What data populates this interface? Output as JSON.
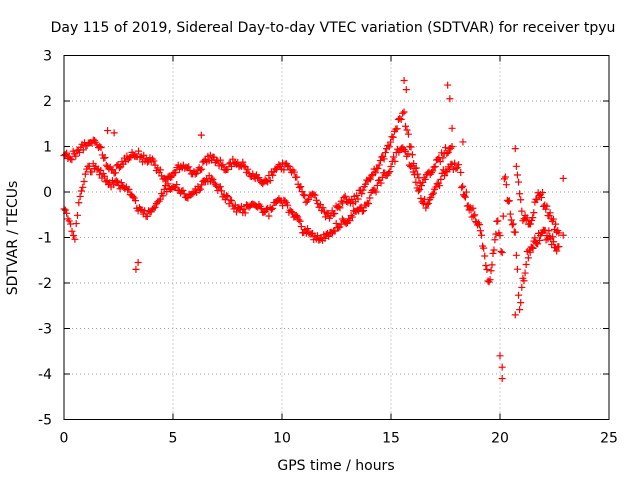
{
  "chart_data": {
    "type": "scatter",
    "title": "Day 115 of 2019, Sidereal Day-to-day VTEC variation (SDTVAR) for receiver tpyu",
    "xlabel": "GPS time / hours",
    "ylabel": "SDTVAR / TECUs",
    "xlim": [
      0,
      25
    ],
    "ylim": [
      -5,
      3
    ],
    "xticks": [
      "0",
      "5",
      "10",
      "15",
      "20",
      "25"
    ],
    "yticks": [
      "3",
      "2",
      "1",
      "0",
      "-1",
      "-2",
      "-3",
      "-4",
      "-5"
    ],
    "grid": true,
    "marker": "+",
    "series": [
      {
        "name": "SDTVAR",
        "color": "#ff0000",
        "trace_upper": [
          [
            0.0,
            0.8
          ],
          [
            0.3,
            0.75
          ],
          [
            0.6,
            0.9
          ],
          [
            1.0,
            1.05
          ],
          [
            1.4,
            1.1
          ],
          [
            1.7,
            0.95
          ],
          [
            2.0,
            0.6
          ],
          [
            2.3,
            0.45
          ],
          [
            2.6,
            0.6
          ],
          [
            3.0,
            0.8
          ],
          [
            3.3,
            0.85
          ],
          [
            3.6,
            0.75
          ],
          [
            4.0,
            0.7
          ],
          [
            4.3,
            0.5
          ],
          [
            4.6,
            0.3
          ],
          [
            5.0,
            0.35
          ],
          [
            5.3,
            0.55
          ],
          [
            5.6,
            0.6
          ],
          [
            5.9,
            0.45
          ],
          [
            6.2,
            0.5
          ],
          [
            6.6,
            0.75
          ],
          [
            7.0,
            0.7
          ],
          [
            7.4,
            0.55
          ],
          [
            7.8,
            0.65
          ],
          [
            8.2,
            0.6
          ],
          [
            8.6,
            0.4
          ],
          [
            9.0,
            0.25
          ],
          [
            9.4,
            0.3
          ],
          [
            9.8,
            0.5
          ],
          [
            10.2,
            0.6
          ],
          [
            10.5,
            0.45
          ],
          [
            10.8,
            0.1
          ],
          [
            11.1,
            -0.2
          ],
          [
            11.4,
            -0.1
          ],
          [
            11.7,
            -0.25
          ],
          [
            12.0,
            -0.55
          ],
          [
            12.3,
            -0.45
          ],
          [
            12.6,
            -0.3
          ],
          [
            12.9,
            -0.1
          ],
          [
            13.2,
            -0.25
          ],
          [
            13.6,
            0.0
          ],
          [
            14.0,
            0.3
          ],
          [
            14.4,
            0.55
          ],
          [
            14.8,
            0.9
          ],
          [
            15.1,
            1.2
          ],
          [
            15.4,
            1.6
          ],
          [
            15.6,
            1.7
          ],
          [
            15.8,
            1.2
          ],
          [
            16.1,
            0.5
          ],
          [
            16.4,
            0.2
          ],
          [
            16.8,
            0.4
          ],
          [
            17.2,
            0.7
          ],
          [
            17.5,
            0.9
          ],
          [
            17.8,
            1.0
          ]
        ],
        "trace_lower": [
          [
            0.0,
            -0.3
          ],
          [
            0.3,
            -0.7
          ],
          [
            0.5,
            -0.95
          ],
          [
            0.8,
            0.1
          ],
          [
            1.1,
            0.5
          ],
          [
            1.4,
            0.55
          ],
          [
            1.8,
            0.35
          ],
          [
            2.1,
            0.15
          ],
          [
            2.4,
            0.2
          ],
          [
            2.8,
            0.1
          ],
          [
            3.1,
            -0.05
          ],
          [
            3.4,
            -0.35
          ],
          [
            3.7,
            -0.5
          ],
          [
            4.0,
            -0.4
          ],
          [
            4.3,
            -0.3
          ],
          [
            4.6,
            0.05
          ],
          [
            5.0,
            0.15
          ],
          [
            5.4,
            0.05
          ],
          [
            5.8,
            -0.15
          ],
          [
            6.2,
            0.1
          ],
          [
            6.6,
            0.3
          ],
          [
            7.0,
            0.15
          ],
          [
            7.4,
            -0.1
          ],
          [
            7.8,
            -0.35
          ],
          [
            8.2,
            -0.4
          ],
          [
            8.6,
            -0.3
          ],
          [
            9.0,
            -0.35
          ],
          [
            9.4,
            -0.45
          ],
          [
            9.8,
            -0.2
          ],
          [
            10.2,
            -0.3
          ],
          [
            10.6,
            -0.55
          ],
          [
            11.0,
            -0.85
          ],
          [
            11.4,
            -0.95
          ],
          [
            11.8,
            -1.05
          ],
          [
            12.2,
            -0.9
          ],
          [
            12.6,
            -0.7
          ],
          [
            13.0,
            -0.6
          ],
          [
            13.4,
            -0.45
          ],
          [
            13.8,
            -0.3
          ],
          [
            14.2,
            0.0
          ],
          [
            14.6,
            0.3
          ],
          [
            15.0,
            0.55
          ],
          [
            15.3,
            0.9
          ],
          [
            15.6,
            1.0
          ],
          [
            15.9,
            0.6
          ],
          [
            16.2,
            0.1
          ],
          [
            16.6,
            -0.3
          ],
          [
            17.0,
            0.0
          ],
          [
            17.4,
            0.4
          ],
          [
            17.8,
            0.55
          ],
          [
            18.1,
            0.6
          ]
        ],
        "trace_late": [
          [
            18.2,
            0.3
          ],
          [
            18.5,
            -0.2
          ],
          [
            18.8,
            -0.5
          ],
          [
            19.1,
            -0.9
          ],
          [
            19.3,
            -1.4
          ],
          [
            19.5,
            -2.0
          ],
          [
            19.9,
            -0.5
          ],
          [
            20.0,
            -1.1
          ],
          [
            20.1,
            -1.45
          ],
          [
            20.2,
            0.3
          ],
          [
            20.7,
            -1.0
          ],
          [
            20.9,
            -2.5
          ],
          [
            21.1,
            -1.8
          ],
          [
            21.3,
            -1.3
          ],
          [
            21.6,
            -1.1
          ],
          [
            21.9,
            -0.9
          ],
          [
            22.2,
            -0.95
          ],
          [
            22.5,
            -1.1
          ],
          [
            22.7,
            -1.2
          ]
        ],
        "trace_late_upper": [
          [
            20.7,
            0.9
          ],
          [
            21.0,
            -0.5
          ],
          [
            21.3,
            -0.7
          ],
          [
            21.5,
            -0.5
          ],
          [
            21.7,
            -0.1
          ],
          [
            21.9,
            0.0
          ],
          [
            22.1,
            -0.4
          ],
          [
            22.4,
            -0.6
          ],
          [
            22.7,
            -0.9
          ]
        ],
        "outliers": [
          [
            2.0,
            1.35
          ],
          [
            2.3,
            1.3
          ],
          [
            3.3,
            -1.7
          ],
          [
            3.4,
            -1.55
          ],
          [
            6.3,
            1.25
          ],
          [
            15.6,
            2.45
          ],
          [
            15.7,
            2.25
          ],
          [
            17.6,
            2.35
          ],
          [
            17.7,
            2.05
          ],
          [
            17.8,
            1.4
          ],
          [
            18.3,
            1.1
          ],
          [
            20.0,
            -3.6
          ],
          [
            20.1,
            -3.85
          ],
          [
            20.1,
            -4.1
          ],
          [
            20.7,
            -2.7
          ],
          [
            22.9,
            0.3
          ],
          [
            22.9,
            -0.95
          ]
        ]
      }
    ]
  }
}
